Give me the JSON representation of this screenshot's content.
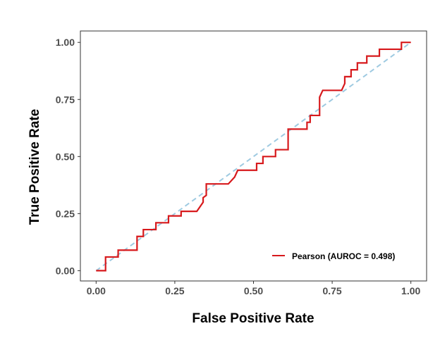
{
  "chart_data": {
    "type": "line",
    "xlabel": "False Positive Rate",
    "ylabel": "True Positive Rate",
    "xlim": [
      -0.05,
      1.05
    ],
    "ylim": [
      -0.045,
      1.05
    ],
    "xticks": [
      0.0,
      0.25,
      0.5,
      0.75,
      1.0
    ],
    "yticks": [
      0.0,
      0.25,
      0.5,
      0.75,
      1.0
    ],
    "xtick_labels": [
      "0.00",
      "0.25",
      "0.50",
      "0.75",
      "1.00"
    ],
    "ytick_labels": [
      "0.00",
      "0.25",
      "0.50",
      "0.75",
      "1.00"
    ],
    "grid": false,
    "legend_position": "bottom-right",
    "series": [
      {
        "name": "Pearson (AUROC = 0.498)",
        "color": "#d7191c",
        "style": "solid",
        "points": [
          [
            0.0,
            0.0
          ],
          [
            0.03,
            0.0
          ],
          [
            0.03,
            0.06
          ],
          [
            0.07,
            0.06
          ],
          [
            0.07,
            0.09
          ],
          [
            0.13,
            0.09
          ],
          [
            0.13,
            0.15
          ],
          [
            0.15,
            0.15
          ],
          [
            0.15,
            0.18
          ],
          [
            0.19,
            0.18
          ],
          [
            0.19,
            0.21
          ],
          [
            0.23,
            0.21
          ],
          [
            0.23,
            0.24
          ],
          [
            0.27,
            0.24
          ],
          [
            0.27,
            0.26
          ],
          [
            0.32,
            0.26
          ],
          [
            0.33,
            0.28
          ],
          [
            0.34,
            0.3
          ],
          [
            0.34,
            0.32
          ],
          [
            0.35,
            0.33
          ],
          [
            0.35,
            0.38
          ],
          [
            0.42,
            0.38
          ],
          [
            0.44,
            0.41
          ],
          [
            0.45,
            0.44
          ],
          [
            0.51,
            0.44
          ],
          [
            0.51,
            0.47
          ],
          [
            0.53,
            0.47
          ],
          [
            0.53,
            0.5
          ],
          [
            0.57,
            0.5
          ],
          [
            0.57,
            0.53
          ],
          [
            0.61,
            0.53
          ],
          [
            0.61,
            0.62
          ],
          [
            0.67,
            0.62
          ],
          [
            0.67,
            0.65
          ],
          [
            0.68,
            0.65
          ],
          [
            0.68,
            0.68
          ],
          [
            0.71,
            0.68
          ],
          [
            0.71,
            0.76
          ],
          [
            0.72,
            0.79
          ],
          [
            0.78,
            0.79
          ],
          [
            0.79,
            0.82
          ],
          [
            0.79,
            0.85
          ],
          [
            0.81,
            0.85
          ],
          [
            0.81,
            0.88
          ],
          [
            0.83,
            0.88
          ],
          [
            0.83,
            0.91
          ],
          [
            0.86,
            0.91
          ],
          [
            0.86,
            0.94
          ],
          [
            0.9,
            0.94
          ],
          [
            0.9,
            0.97
          ],
          [
            0.97,
            0.97
          ],
          [
            0.97,
            1.0
          ],
          [
            1.0,
            1.0
          ]
        ]
      },
      {
        "name": "",
        "color": "#9ecae1",
        "style": "dashed",
        "points": [
          [
            0,
            0
          ],
          [
            1,
            1
          ]
        ]
      }
    ]
  }
}
